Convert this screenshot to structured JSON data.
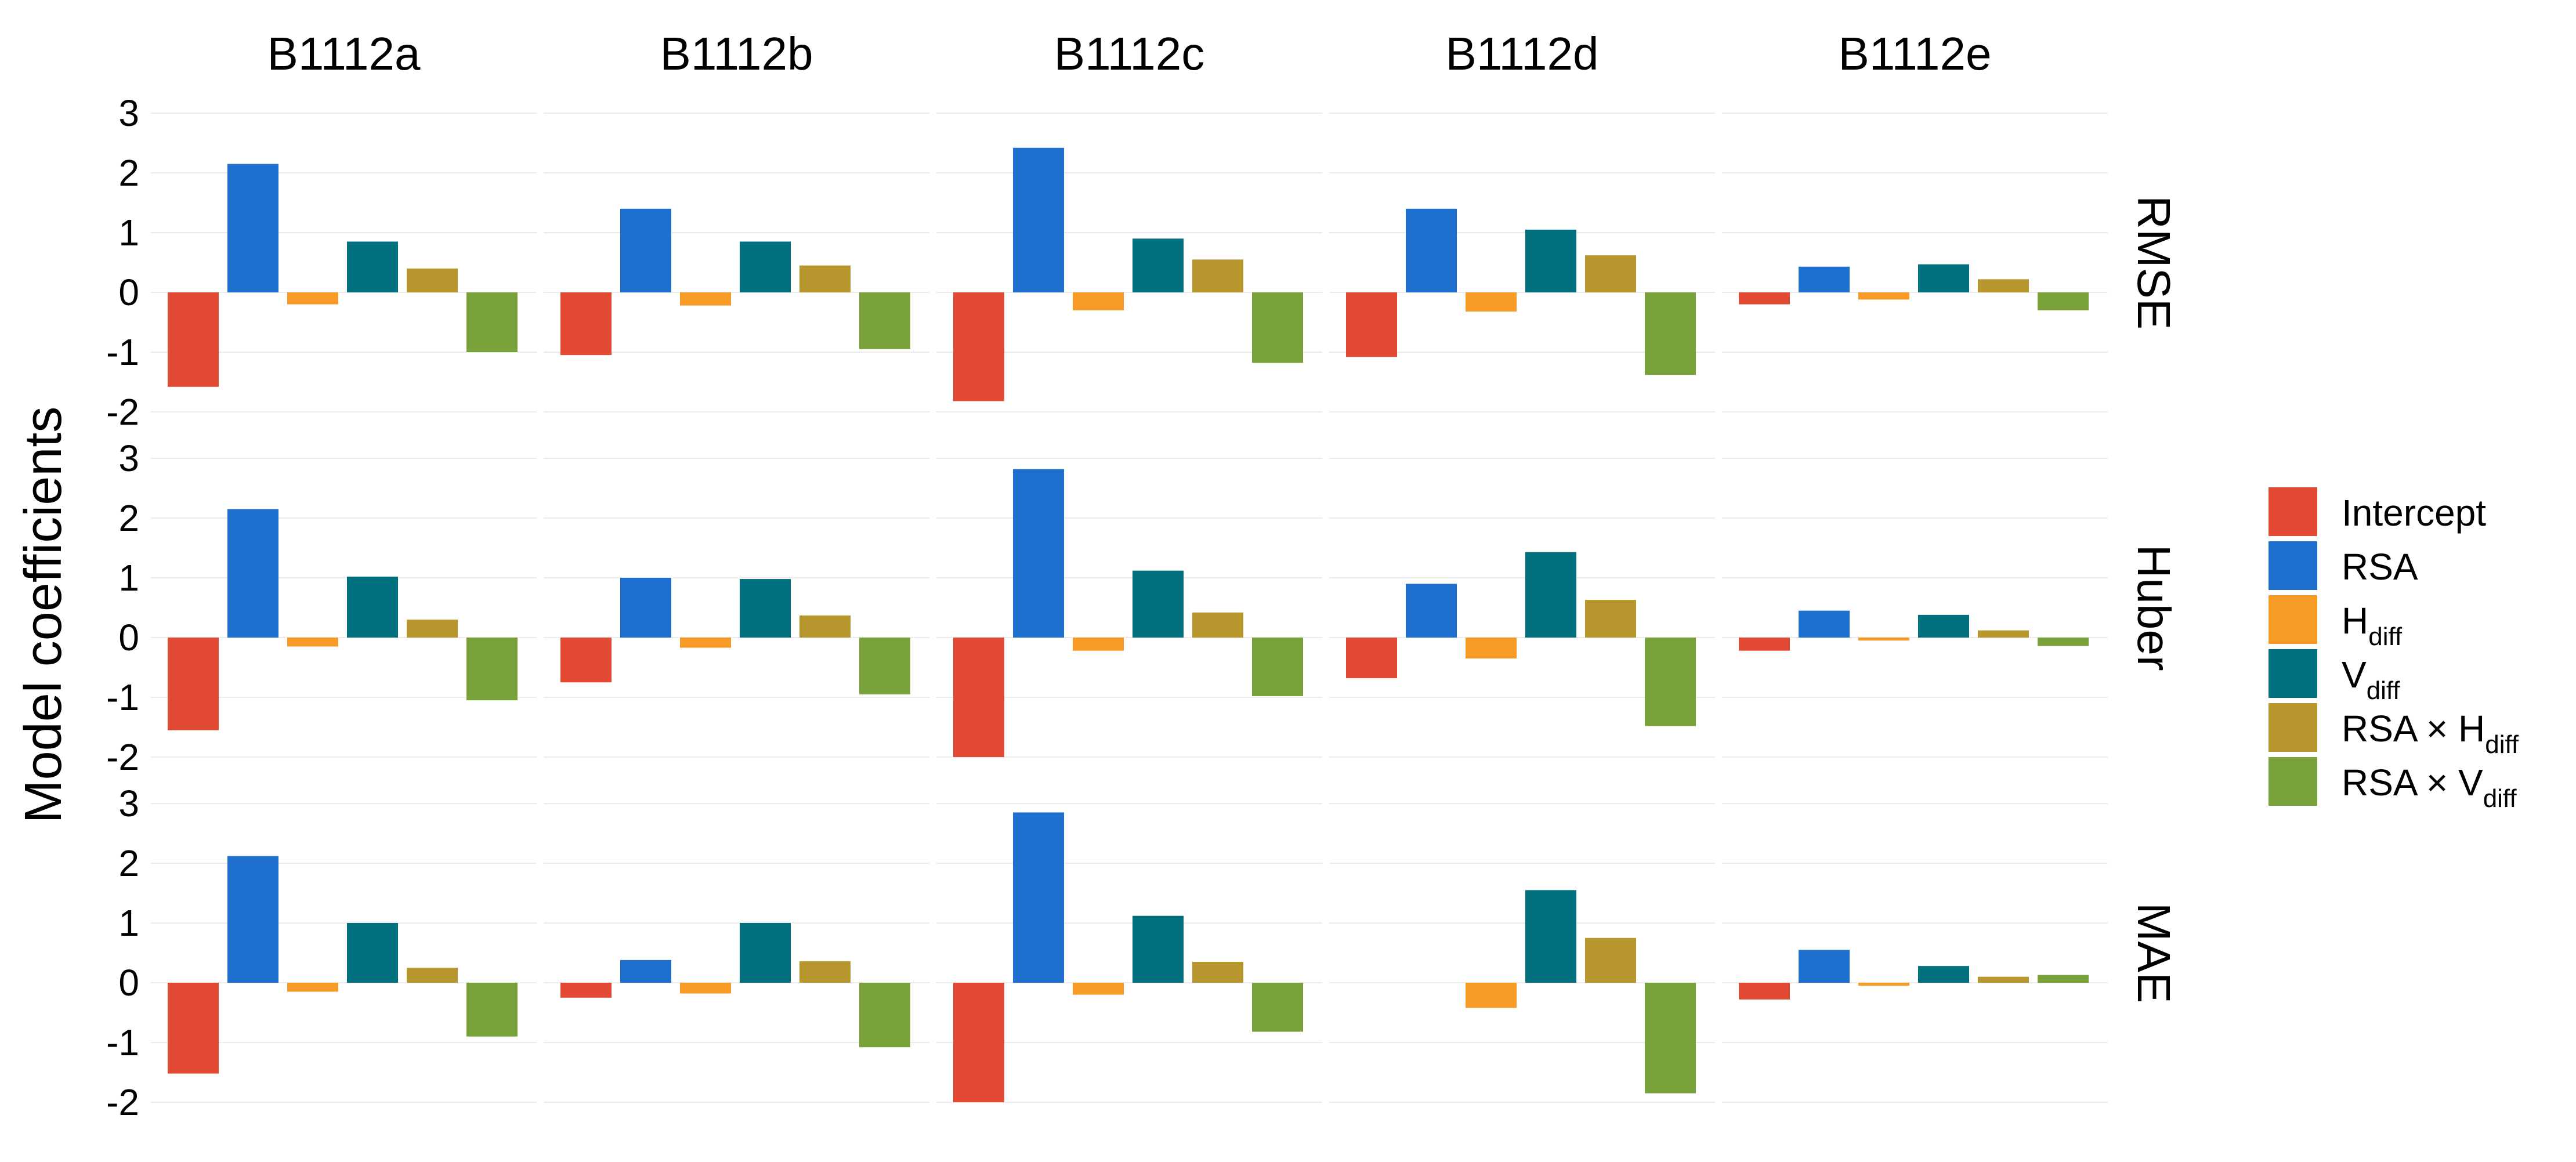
{
  "chart_data": {
    "type": "bar",
    "ylabel": "Model coefficients",
    "ylim": [
      -2,
      3
    ],
    "yticks": [
      3,
      2,
      1,
      0,
      -1,
      -2
    ],
    "grid": true,
    "legend_position": "right",
    "facet_columns": [
      "B1112a",
      "B1112b",
      "B1112c",
      "B1112d",
      "B1112e"
    ],
    "facet_rows": [
      "RMSE",
      "Huber",
      "MAE"
    ],
    "series": [
      {
        "name": "Intercept",
        "color": "#e34a33"
      },
      {
        "name": "RSA",
        "color": "#1f6fce"
      },
      {
        "name": "H",
        "sub": "diff",
        "color": "#f79a26"
      },
      {
        "name": "V",
        "sub": "diff",
        "color": "#00707f"
      },
      {
        "name": "RSA × H",
        "sub": "diff",
        "color": "#b8962e"
      },
      {
        "name": "RSA × V",
        "sub": "diff",
        "color": "#79a13a"
      }
    ],
    "values": {
      "RMSE": {
        "B1112a": [
          -1.58,
          2.15,
          -0.2,
          0.85,
          0.4,
          -1.0
        ],
        "B1112b": [
          -1.05,
          1.4,
          -0.22,
          0.85,
          0.45,
          -0.95
        ],
        "B1112c": [
          -1.82,
          2.42,
          -0.3,
          0.9,
          0.55,
          -1.18
        ],
        "B1112d": [
          -1.08,
          1.4,
          -0.32,
          1.05,
          0.62,
          -1.38
        ],
        "B1112e": [
          -0.2,
          0.43,
          -0.12,
          0.47,
          0.22,
          -0.3
        ]
      },
      "Huber": {
        "B1112a": [
          -1.55,
          2.15,
          -0.15,
          1.02,
          0.3,
          -1.05
        ],
        "B1112b": [
          -0.75,
          1.0,
          -0.17,
          0.98,
          0.37,
          -0.95
        ],
        "B1112c": [
          -2.0,
          2.82,
          -0.22,
          1.12,
          0.42,
          -0.98
        ],
        "B1112d": [
          -0.68,
          0.9,
          -0.35,
          1.43,
          0.63,
          -1.48
        ],
        "B1112e": [
          -0.22,
          0.45,
          -0.05,
          0.38,
          0.12,
          -0.14
        ]
      },
      "MAE": {
        "B1112a": [
          -1.52,
          2.12,
          -0.15,
          1.0,
          0.25,
          -0.9
        ],
        "B1112b": [
          -0.25,
          0.38,
          -0.18,
          1.0,
          0.36,
          -1.08
        ],
        "B1112c": [
          -2.0,
          2.85,
          -0.2,
          1.12,
          0.35,
          -0.82
        ],
        "B1112d": [
          0,
          0,
          -0.42,
          1.55,
          0.75,
          -1.85
        ],
        "B1112e": [
          -0.28,
          0.55,
          -0.05,
          0.28,
          0.1,
          0.13
        ]
      }
    }
  }
}
